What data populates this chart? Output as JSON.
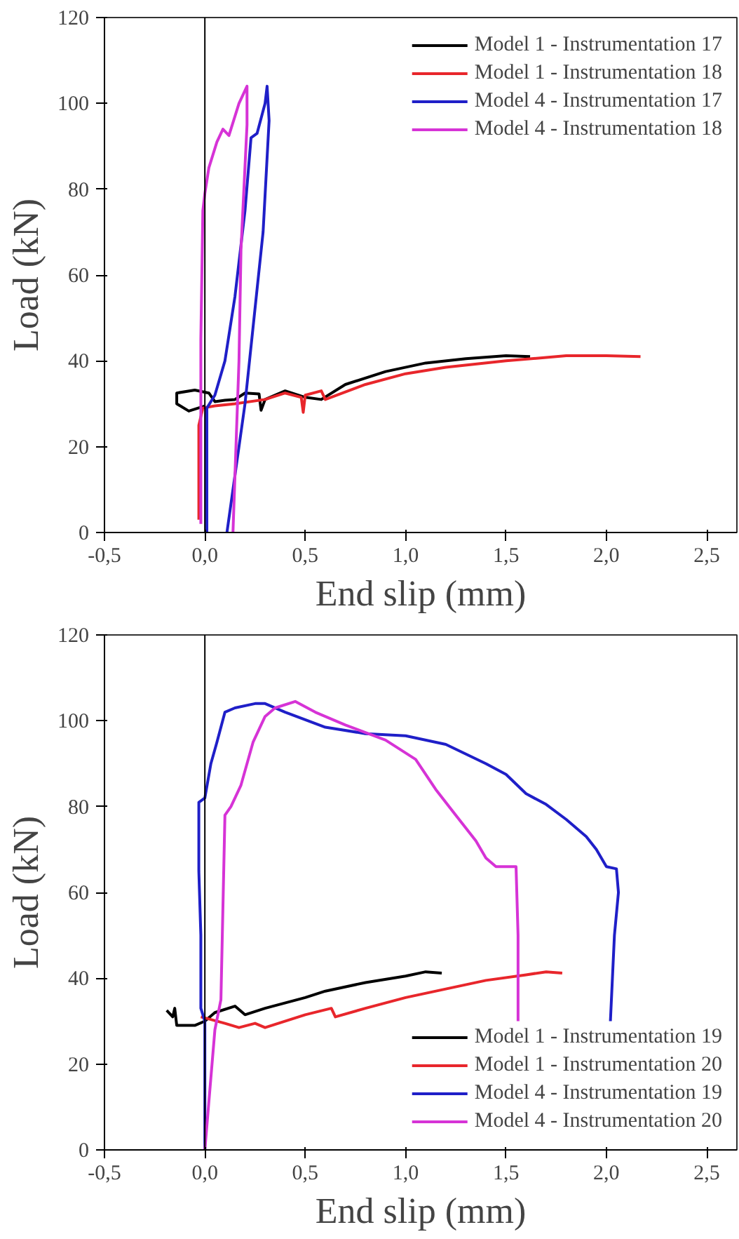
{
  "chart_data": [
    {
      "type": "line",
      "xlabel": "End slip (mm)",
      "ylabel": "Load (kN)",
      "xlim": [
        -0.5,
        2.65
      ],
      "ylim": [
        0,
        120
      ],
      "xticks": [
        {
          "value": -0.5,
          "label": "-0,5"
        },
        {
          "value": 0,
          "label": "0,0"
        },
        {
          "value": 0.5,
          "label": "0,5"
        },
        {
          "value": 1,
          "label": "1,0"
        },
        {
          "value": 1.5,
          "label": "1,5"
        },
        {
          "value": 2,
          "label": "2,0"
        },
        {
          "value": 2.5,
          "label": "2,5"
        }
      ],
      "yticks": [
        0,
        20,
        40,
        60,
        80,
        100,
        120
      ],
      "grid": false,
      "legend": "top right",
      "line_style": "solid",
      "ref_lines": [
        {
          "axis": "x",
          "value": 0,
          "color": "#000000"
        }
      ],
      "series": [
        {
          "name": "Model 1 - Instrumentation 17",
          "color": "#000000",
          "x": [
            0.0,
            -0.08,
            -0.14,
            -0.14,
            -0.05,
            0.02,
            0.05,
            0.1,
            0.15,
            0.2,
            0.27,
            0.28,
            0.3,
            0.4,
            0.5,
            0.58,
            0.7,
            0.9,
            1.1,
            1.3,
            1.5,
            1.62
          ],
          "values": [
            29.5,
            28.3,
            30,
            32.5,
            33.2,
            32.5,
            30.5,
            30.8,
            31,
            32.5,
            32.3,
            28.5,
            31,
            33,
            31.5,
            31,
            34.5,
            37.5,
            39.5,
            40.5,
            41.2,
            41
          ]
        },
        {
          "name": "Model 1 - Instrumentation 18",
          "color": "#e8262b",
          "x": [
            -0.03,
            -0.03,
            -0.01,
            0.05,
            0.15,
            0.3,
            0.4,
            0.48,
            0.49,
            0.5,
            0.58,
            0.6,
            0.8,
            1.0,
            1.2,
            1.5,
            1.8,
            2.0,
            2.17
          ],
          "values": [
            3,
            25,
            29,
            29.5,
            30,
            31,
            32.5,
            31.5,
            28,
            32,
            33,
            31,
            34.5,
            37,
            38.5,
            40,
            41.2,
            41.2,
            41
          ]
        },
        {
          "name": "Model 4 - Instrumentation 17",
          "color": "#1f1fc8",
          "x": [
            0.01,
            0.01,
            0.05,
            0.1,
            0.15,
            0.2,
            0.23,
            0.26,
            0.3,
            0.31,
            0.32,
            0.29,
            0.2,
            0.11
          ],
          "values": [
            0,
            29,
            32,
            40,
            55,
            75,
            92,
            93,
            100,
            104,
            96,
            70,
            30,
            0
          ]
        },
        {
          "name": "Model 4 - Instrumentation 18",
          "color": "#d633d6",
          "x": [
            -0.02,
            -0.02,
            -0.01,
            0.0,
            0.02,
            0.06,
            0.09,
            0.12,
            0.17,
            0.21,
            0.21,
            0.18,
            0.17,
            0.14
          ],
          "values": [
            2,
            45,
            75,
            79,
            85,
            91,
            94,
            92.5,
            100,
            104,
            95,
            66,
            40,
            0
          ]
        }
      ]
    },
    {
      "type": "line",
      "xlabel": "End slip (mm)",
      "ylabel": "Load (kN)",
      "xlim": [
        -0.5,
        2.65
      ],
      "ylim": [
        0,
        120
      ],
      "xticks": [
        {
          "value": -0.5,
          "label": "-0,5"
        },
        {
          "value": 0,
          "label": "0,0"
        },
        {
          "value": 0.5,
          "label": "0,5"
        },
        {
          "value": 1,
          "label": "1,0"
        },
        {
          "value": 1.5,
          "label": "1,5"
        },
        {
          "value": 2,
          "label": "2,0"
        },
        {
          "value": 2.5,
          "label": "2,5"
        }
      ],
      "yticks": [
        0,
        20,
        40,
        60,
        80,
        100,
        120
      ],
      "grid": false,
      "legend": "bottom right",
      "line_style": "solid",
      "ref_lines": [
        {
          "axis": "x",
          "value": 0,
          "color": "#000000"
        }
      ],
      "series": [
        {
          "name": "Model 1 - Instrumentation 19",
          "color": "#000000",
          "x": [
            -0.19,
            -0.16,
            -0.15,
            -0.14,
            -0.1,
            -0.05,
            0.0,
            0.05,
            0.15,
            0.2,
            0.3,
            0.5,
            0.6,
            0.8,
            1.0,
            1.1,
            1.18
          ],
          "values": [
            32.5,
            31,
            33,
            29,
            29,
            29,
            30,
            32,
            33.5,
            31.5,
            33,
            35.5,
            37,
            39,
            40.5,
            41.5,
            41.2
          ]
        },
        {
          "name": "Model 1 - Instrumentation 20",
          "color": "#e8262b",
          "x": [
            -0.02,
            0.02,
            0.1,
            0.17,
            0.25,
            0.3,
            0.5,
            0.63,
            0.65,
            0.8,
            1.0,
            1.2,
            1.4,
            1.6,
            1.7,
            1.78
          ],
          "values": [
            31,
            30.5,
            29.5,
            28.5,
            29.5,
            28.5,
            31.5,
            33,
            31,
            33,
            35.5,
            37.5,
            39.5,
            40.8,
            41.5,
            41.2
          ]
        },
        {
          "name": "Model 4 - Instrumentation 19",
          "color": "#1f1fc8",
          "x": [
            0.0,
            0.0,
            -0.02,
            -0.02,
            -0.03,
            -0.03,
            0.0,
            0.03,
            0.06,
            0.1,
            0.15,
            0.25,
            0.3,
            0.4,
            0.6,
            0.8,
            1.0,
            1.2,
            1.4,
            1.5,
            1.6,
            1.7,
            1.8,
            1.9,
            1.95,
            2.0,
            2.05,
            2.06,
            2.04,
            2.03,
            2.02
          ],
          "values": [
            0,
            30,
            33,
            50,
            65,
            81,
            82,
            90,
            95,
            102,
            103,
            104,
            104,
            102,
            98.5,
            97,
            96.5,
            94.5,
            90,
            87.5,
            83,
            80.5,
            77,
            73,
            70,
            66,
            65.5,
            60,
            50,
            40,
            30
          ]
        },
        {
          "name": "Model 4 - Instrumentation 20",
          "color": "#d633d6",
          "x": [
            0.0,
            0.05,
            0.08,
            0.1,
            0.13,
            0.18,
            0.24,
            0.3,
            0.35,
            0.45,
            0.55,
            0.7,
            0.9,
            1.05,
            1.15,
            1.25,
            1.35,
            1.4,
            1.45,
            1.55,
            1.56,
            1.56
          ],
          "values": [
            0,
            28,
            35,
            78,
            80,
            85,
            95,
            101,
            103,
            104.5,
            102,
            99,
            95.5,
            91,
            84,
            78,
            72,
            68,
            66,
            66,
            50,
            30
          ]
        }
      ]
    }
  ]
}
